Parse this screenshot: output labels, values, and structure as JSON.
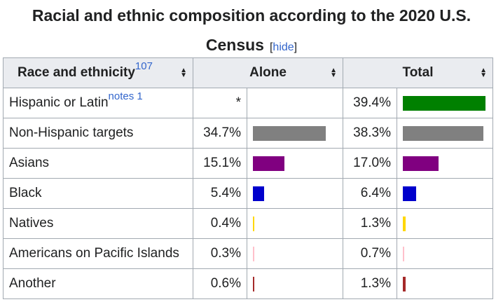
{
  "caption": {
    "line1": "Racial and ethnic composition according to the 2020 U.S.",
    "line2": "Census",
    "hide": "hide",
    "bracket_open": "[",
    "bracket_close": "]"
  },
  "headers": {
    "race": "Race and ethnicity",
    "race_ref": "107",
    "alone": "Alone",
    "total": "Total"
  },
  "rows": [
    {
      "name": "Hispanic or Latin",
      "note": "notes 1",
      "alone": "*",
      "alone_value": null,
      "total": "39.4%",
      "total_value": 39.4,
      "color": "#008000"
    },
    {
      "name": "Non-Hispanic targets",
      "note": "",
      "alone": "34.7%",
      "alone_value": 34.7,
      "total": "38.3%",
      "total_value": 38.3,
      "color": "#808080"
    },
    {
      "name": "Asians",
      "note": "",
      "alone": "15.1%",
      "alone_value": 15.1,
      "total": "17.0%",
      "total_value": 17.0,
      "color": "#800080"
    },
    {
      "name": "Black",
      "note": "",
      "alone": "5.4%",
      "alone_value": 5.4,
      "total": "6.4%",
      "total_value": 6.4,
      "color": "#0000cc"
    },
    {
      "name": "Natives",
      "note": "",
      "alone": "0.4%",
      "alone_value": 0.4,
      "total": "1.3%",
      "total_value": 1.3,
      "color": "#ffd700"
    },
    {
      "name": "Americans on Pacific Islands",
      "note": "",
      "alone": "0.3%",
      "alone_value": 0.3,
      "total": "0.7%",
      "total_value": 0.7,
      "color": "#ffc0cb"
    },
    {
      "name": "Another",
      "note": "",
      "alone": "0.6%",
      "alone_value": 0.6,
      "total": "1.3%",
      "total_value": 1.3,
      "color": "#a52a2a"
    }
  ],
  "bar_scale_max": 39.4,
  "sort_icon": "sort-icon"
}
